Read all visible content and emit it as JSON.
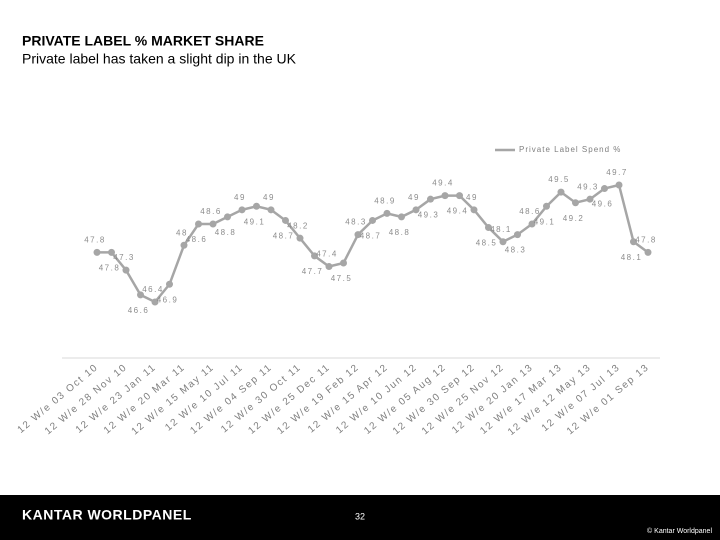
{
  "chart_data": {
    "type": "line",
    "title": "PRIVATE LABEL % MARKET SHARE",
    "subtitle": "Private label has taken a slight dip in the UK",
    "categories": [
      "12 W/e 03 Oct 10",
      null,
      "12 W/e 28 Nov 10",
      null,
      "12 W/e 23 Jan 11",
      null,
      "12 W/e 20 Mar 11",
      null,
      "12 W/e 15 May 11",
      null,
      "12 W/e 10 Jul 11",
      null,
      "12 W/e 04 Sep 11",
      null,
      "12 W/e 30 Oct 11",
      null,
      "12 W/e 25 Dec 11",
      null,
      "12 W/e 19 Feb 12",
      null,
      "12 W/e 15 Apr 12",
      null,
      "12 W/e 10 Jun 12",
      null,
      "12 W/e 05 Aug 12",
      null,
      "12 W/e 30 Sep 12",
      null,
      "12 W/e 25 Nov 12",
      null,
      "12 W/e 20 Jan 13",
      null,
      "12 W/e 17 Mar 13",
      null,
      "12 W/e 12 May 13",
      null,
      "12 W/e 07 Jul 13",
      null,
      "12 W/e 01 Sep 13"
    ],
    "series": [
      {
        "name": "Private Label Spend %",
        "color": "#a6a6a6",
        "values": [
          47.8,
          47.8,
          47.3,
          46.6,
          46.4,
          46.9,
          48.0,
          48.6,
          48.6,
          48.8,
          49.0,
          49.1,
          49.0,
          48.7,
          48.2,
          47.7,
          47.4,
          47.5,
          48.3,
          48.7,
          48.9,
          48.8,
          49.0,
          49.3,
          49.4,
          49.4,
          49.0,
          48.5,
          48.1,
          48.3,
          48.6,
          49.1,
          49.5,
          49.2,
          49.3,
          49.6,
          49.7,
          48.1,
          47.8
        ]
      }
    ],
    "legend": "top-right"
  },
  "footer": {
    "logo": "KANTAR WORLDPANEL",
    "page_number": "32",
    "copyright": "© Kantar Worldpanel"
  }
}
